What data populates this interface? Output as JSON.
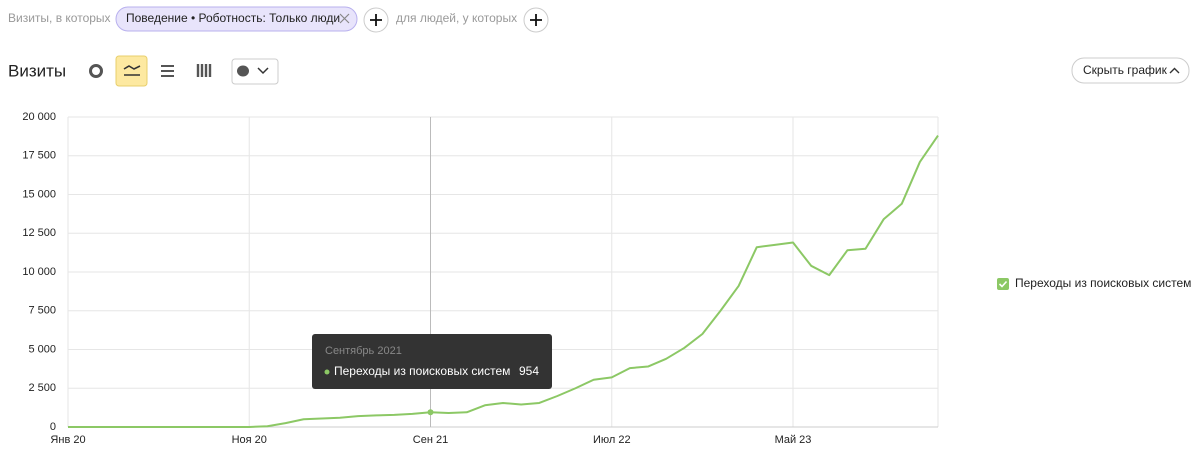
{
  "filter": {
    "prefix": "Визиты, в которых",
    "chip": "Поведение • Роботность: Только люди",
    "suffix": "для людей, у которых"
  },
  "report": {
    "title": "Визиты",
    "hide_button": "Скрыть график"
  },
  "chart_data": {
    "type": "line",
    "categories": [
      "Янв 20",
      null,
      null,
      null,
      null,
      null,
      null,
      null,
      null,
      null,
      "Ноя 20",
      null,
      null,
      null,
      null,
      null,
      null,
      null,
      null,
      null,
      "Сен 21",
      null,
      null,
      null,
      null,
      null,
      null,
      null,
      null,
      null,
      "Июл 22",
      null,
      null,
      null,
      null,
      null,
      null,
      null,
      null,
      null,
      "Май 23",
      null,
      null,
      null,
      null,
      null,
      null,
      null,
      null
    ],
    "series": [
      {
        "name": "Переходы из поисковых систем",
        "color": "#8cc865",
        "values": [
          0,
          0,
          0,
          0,
          0,
          0,
          0,
          0,
          0,
          0,
          0,
          50,
          250,
          500,
          550,
          600,
          700,
          750,
          780,
          850,
          954,
          900,
          950,
          1400,
          1550,
          1450,
          1550,
          2000,
          2500,
          3050,
          3200,
          3800,
          3900,
          4400,
          5100,
          6000,
          7500,
          9100,
          11600,
          11750,
          11900,
          10400,
          9800,
          11400,
          11500,
          13400,
          14400,
          17100,
          18800
        ]
      }
    ],
    "ylim": [
      0,
      20000
    ],
    "yticks": [
      0,
      {
        "value": 2500,
        "label": "2 500"
      },
      {
        "value": 5000,
        "label": "5 000"
      },
      {
        "value": 7500,
        "label": "7 500"
      },
      {
        "value": 10000,
        "label": "10 000"
      },
      {
        "value": 12500,
        "label": "12 500"
      },
      {
        "value": 15000,
        "label": "15 000"
      },
      {
        "value": 17500,
        "label": "17 500"
      },
      {
        "value": 20000,
        "label": "20 000"
      }
    ],
    "grid": true,
    "legend": "right",
    "tooltip": {
      "title": "Сентябрь 2021"
    }
  }
}
